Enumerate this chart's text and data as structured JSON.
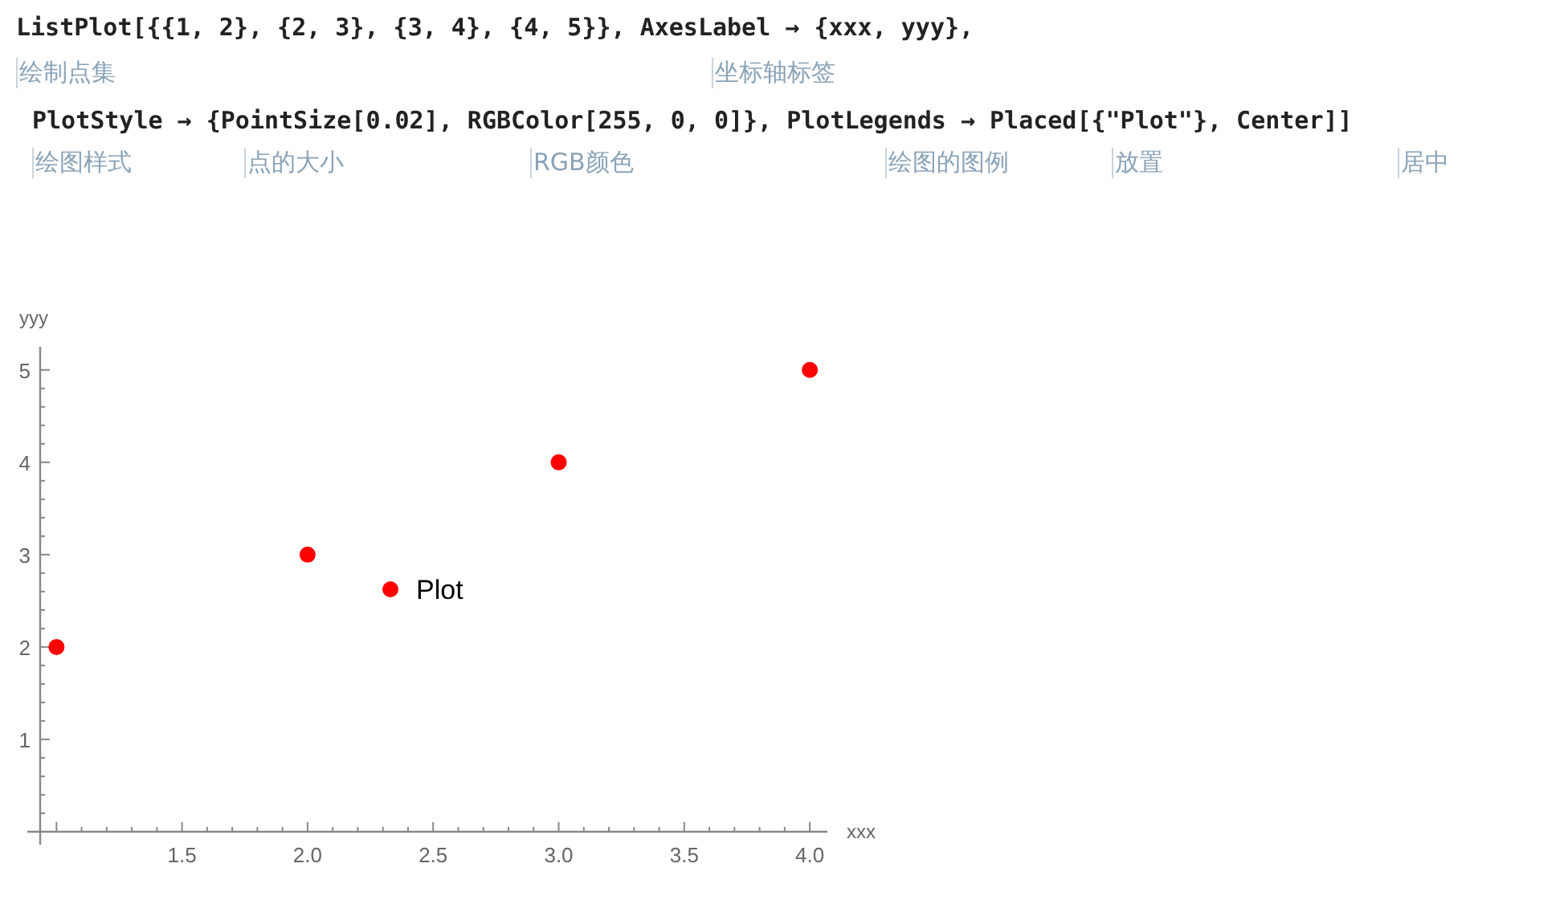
{
  "chart_data": {
    "type": "scatter",
    "xlabel": "xxx",
    "ylabel": "yyy",
    "x": [
      1,
      2,
      3,
      4
    ],
    "series": [
      {
        "name": "Plot",
        "color": "#ff0000",
        "values": [
          2,
          3,
          4,
          5
        ]
      }
    ],
    "xlim": [
      0.935,
      4.07
    ],
    "ylim": [
      0,
      5.25
    ],
    "xticks": [
      {
        "value": 1,
        "label": null
      },
      {
        "value": 1.5,
        "label": "1.5"
      },
      {
        "value": 2,
        "label": "2.0"
      },
      {
        "value": 2.5,
        "label": "2.5"
      },
      {
        "value": 3,
        "label": "3.0"
      },
      {
        "value": 3.5,
        "label": "3.5"
      },
      {
        "value": 4,
        "label": "4.0"
      }
    ],
    "yticks": [
      1,
      2,
      3,
      4,
      5
    ],
    "legend": "center",
    "marker": "circle",
    "annotations": [
      "ListPlot[{{1, 2}, {2, 3}, {3, 4}, {4, 5}}, AxesLabel → {xxx, yyy},",
      "绘制点集",
      "坐标轴标签",
      "PlotStyle → {PointSize[0.02], RGBColor[255, 0, 0]}, PlotLegends → Placed[{\"Plot\"}, Center]]",
      "绘图样式",
      "点的大小",
      "RGB颜色",
      "绘图的图例",
      "放置",
      "居中"
    ]
  }
}
